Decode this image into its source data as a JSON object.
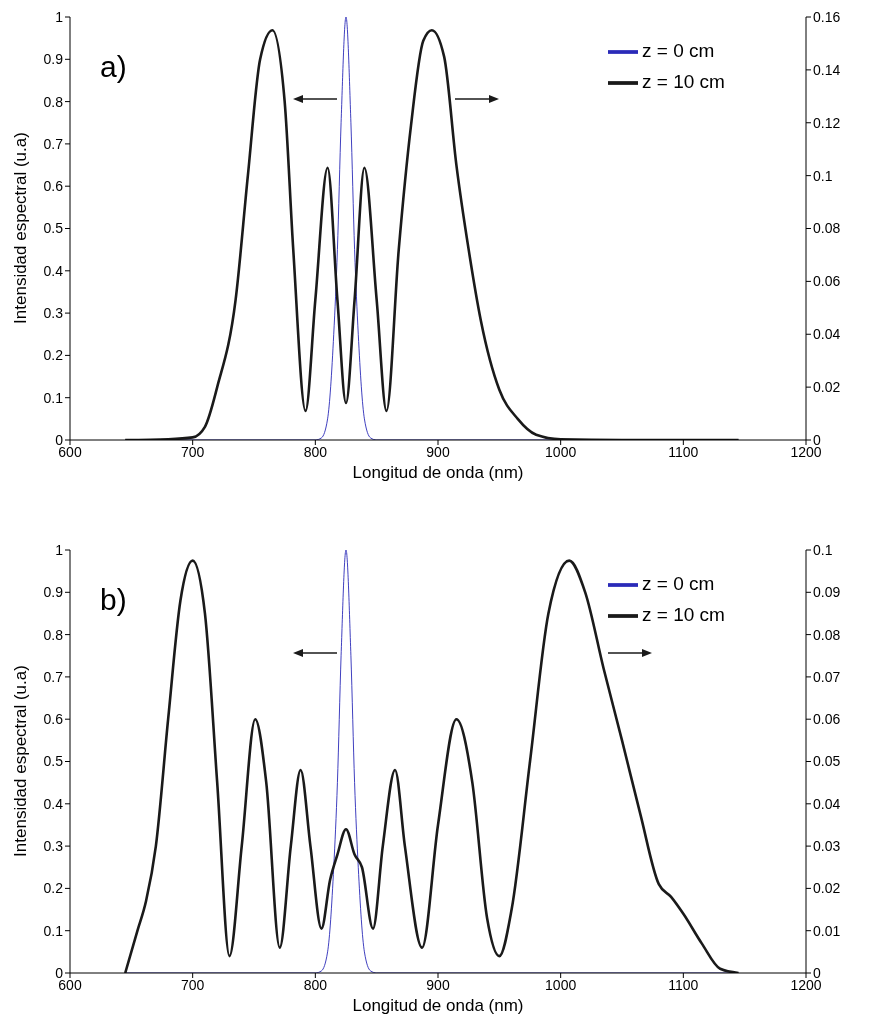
{
  "chart_data": [
    {
      "type": "line",
      "annotations": [
        "a)"
      ],
      "xlabel": "Longitud de onda (nm)",
      "ylabel": "Intensidad espectral (u.a)",
      "xlim": [
        600,
        1200
      ],
      "xticks": [
        600,
        700,
        800,
        900,
        1000,
        1100,
        1200
      ],
      "ylim": [
        0,
        1
      ],
      "yticks": [
        0,
        0.1,
        0.2,
        0.3,
        0.4,
        0.5,
        0.6,
        0.7,
        0.8,
        0.9,
        1
      ],
      "y2lim": [
        0,
        0.16
      ],
      "y2ticks": [
        0,
        0.02,
        0.04,
        0.06,
        0.08,
        0.1,
        0.12,
        0.14,
        0.16
      ],
      "legend": "top right",
      "grid": false,
      "series": [
        {
          "name": "z = 0 cm",
          "color": "#2a2ab8",
          "x": [
            645,
            800,
            805,
            810,
            815,
            818,
            821,
            825,
            829,
            832,
            835,
            840,
            845,
            850,
            1145
          ],
          "values": [
            0,
            0,
            0.005,
            0.05,
            0.25,
            0.45,
            0.75,
            1,
            0.75,
            0.45,
            0.25,
            0.05,
            0.005,
            0,
            0
          ]
        },
        {
          "name": "z = 10 cm",
          "color": "#1a1a1a",
          "axis": "y2",
          "x": [
            645,
            680,
            700,
            710,
            720,
            735,
            745,
            755,
            765,
            775,
            782,
            792,
            800,
            810,
            818,
            825,
            832,
            840,
            850,
            858,
            868,
            878,
            888,
            895,
            905,
            915,
            925,
            935,
            950,
            965,
            980,
            1000,
            1050,
            1145
          ],
          "values": [
            0,
            0.0003,
            0.001,
            0.005,
            0.02,
            0.053,
            0.1,
            0.144,
            0.155,
            0.128,
            0.072,
            0.011,
            0.053,
            0.103,
            0.053,
            0.014,
            0.053,
            0.103,
            0.053,
            0.011,
            0.072,
            0.119,
            0.151,
            0.155,
            0.145,
            0.104,
            0.072,
            0.045,
            0.019,
            0.008,
            0.002,
            0.0003,
            0,
            0
          ]
        }
      ]
    },
    {
      "type": "line",
      "annotations": [
        "b)"
      ],
      "xlabel": "Longitud de onda (nm)",
      "ylabel": "Intensidad espectral (u.a)",
      "xlim": [
        600,
        1200
      ],
      "xticks": [
        600,
        700,
        800,
        900,
        1000,
        1100,
        1200
      ],
      "ylim": [
        0,
        1
      ],
      "yticks": [
        0,
        0.1,
        0.2,
        0.3,
        0.4,
        0.5,
        0.6,
        0.7,
        0.8,
        0.9,
        1
      ],
      "y2lim": [
        0,
        0.1
      ],
      "y2ticks": [
        0,
        0.01,
        0.02,
        0.03,
        0.04,
        0.05,
        0.06,
        0.07,
        0.08,
        0.09,
        0.1
      ],
      "legend": "top right",
      "grid": false,
      "series": [
        {
          "name": "z = 0 cm",
          "color": "#2a2ab8",
          "x": [
            645,
            800,
            805,
            810,
            815,
            818,
            821,
            825,
            829,
            832,
            835,
            840,
            845,
            850,
            1145
          ],
          "values": [
            0,
            0,
            0.005,
            0.05,
            0.25,
            0.45,
            0.75,
            1,
            0.75,
            0.45,
            0.25,
            0.05,
            0.005,
            0,
            0
          ]
        },
        {
          "name": "z = 10 cm",
          "color": "#1a1a1a",
          "axis": "y2",
          "x": [
            645,
            655,
            662,
            670,
            680,
            690,
            700,
            710,
            720,
            730,
            740,
            751,
            760,
            771,
            780,
            788,
            796,
            805,
            812,
            818,
            825,
            832,
            838,
            847,
            855,
            865,
            873,
            887,
            900,
            915,
            928,
            940,
            950,
            960,
            975,
            990,
            1007,
            1020,
            1035,
            1050,
            1065,
            1080,
            1090,
            1100,
            1115,
            1130,
            1145
          ],
          "values": [
            0,
            0.01,
            0.017,
            0.03,
            0.06,
            0.088,
            0.0975,
            0.085,
            0.045,
            0.004,
            0.03,
            0.06,
            0.045,
            0.006,
            0.03,
            0.048,
            0.03,
            0.0105,
            0.022,
            0.028,
            0.034,
            0.028,
            0.025,
            0.0105,
            0.03,
            0.048,
            0.03,
            0.006,
            0.035,
            0.06,
            0.045,
            0.013,
            0.004,
            0.015,
            0.05,
            0.085,
            0.0975,
            0.09,
            0.072,
            0.055,
            0.0375,
            0.021,
            0.018,
            0.014,
            0.007,
            0.001,
            0
          ]
        }
      ]
    }
  ]
}
